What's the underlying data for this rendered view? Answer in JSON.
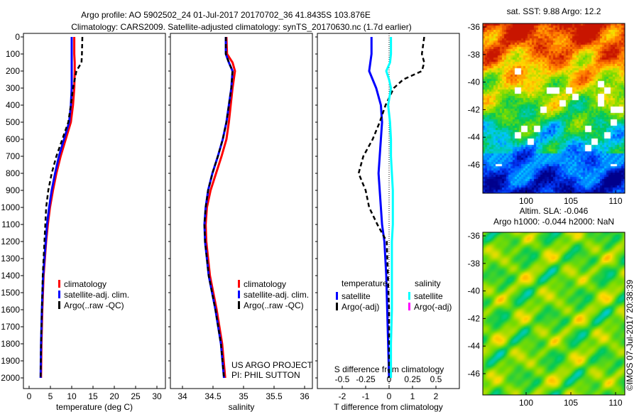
{
  "title_line1": "Argo profile: AO 5902502_24 01-Jul-2017 20170702_36 41.8435S 103.876E",
  "title_line2": "Climatology: CARS2009. Satellite-adjusted climatology: synTS_20170630.nc (1.7d earlier)",
  "colors": {
    "climatology": "#ff0000",
    "satellite": "#0000ff",
    "argo": "#000000",
    "sal_satellite": "#00ffff",
    "sal_argo": "#ff00ff"
  },
  "chart_data": [
    {
      "type": "line",
      "name": "temperature",
      "xlabel": "temperature (deg C)",
      "xlim": [
        -1.5,
        31.5
      ],
      "ylim": [
        2050,
        0
      ],
      "xticks": [
        "0",
        "5",
        "10",
        "15",
        "20",
        "25",
        "30"
      ],
      "yticks": [
        "0",
        "100",
        "200",
        "300",
        "400",
        "500",
        "600",
        "700",
        "800",
        "900",
        "1000",
        "1100",
        "1200",
        "1300",
        "1400",
        "1500",
        "1600",
        "1700",
        "1800",
        "1900",
        "2000"
      ],
      "legend": [
        "climatology",
        "satellite-adj. clim.",
        "Argo(..raw -QC)"
      ],
      "depth": [
        0,
        100,
        150,
        200,
        300,
        400,
        500,
        600,
        700,
        800,
        900,
        1000,
        1100,
        1200,
        1400,
        1600,
        1800,
        2000
      ],
      "series": [
        {
          "name": "climatology",
          "values": [
            10.6,
            10.6,
            10.7,
            10.7,
            10.6,
            10.3,
            9.8,
            8.6,
            7.4,
            6.4,
            5.6,
            4.9,
            4.4,
            4.0,
            3.4,
            3.1,
            2.9,
            2.8
          ]
        },
        {
          "name": "satellite",
          "values": [
            10.0,
            10.0,
            10.0,
            10.0,
            10.0,
            9.8,
            9.4,
            8.2,
            7.0,
            6.1,
            5.3,
            4.7,
            4.2,
            3.9,
            3.3,
            3.0,
            2.8,
            2.7
          ]
        },
        {
          "name": "argo",
          "values": [
            12.5,
            12.4,
            12.3,
            11.1,
            10.3,
            9.8,
            9.2,
            7.8,
            6.4,
            5.3,
            4.5,
            4.0,
            3.8,
            3.6,
            3.2,
            3.0,
            2.8,
            2.7
          ]
        }
      ],
      "annotation": ""
    },
    {
      "type": "line",
      "name": "salinity",
      "xlabel": "salinity",
      "xlim": [
        33.8,
        36.1
      ],
      "ylim": [
        2050,
        0
      ],
      "xticks": [
        "34",
        "34.5",
        "35",
        "35.5",
        "36"
      ],
      "legend": [
        "climatology",
        "satellite-adj. clim.",
        "Argo(..raw -QC)"
      ],
      "depth": [
        0,
        100,
        150,
        200,
        300,
        400,
        500,
        600,
        700,
        800,
        900,
        1000,
        1100,
        1200,
        1400,
        1600,
        1800,
        2000
      ],
      "series": [
        {
          "name": "climatology",
          "values": [
            34.72,
            34.73,
            34.82,
            34.86,
            34.82,
            34.79,
            34.76,
            34.72,
            34.64,
            34.55,
            34.46,
            34.4,
            34.38,
            34.39,
            34.45,
            34.56,
            34.65,
            34.7
          ]
        },
        {
          "name": "satellite",
          "values": [
            34.71,
            34.71,
            34.76,
            34.82,
            34.8,
            34.76,
            34.72,
            34.66,
            34.58,
            34.49,
            34.42,
            34.38,
            34.36,
            34.37,
            34.43,
            34.54,
            34.63,
            34.68
          ]
        },
        {
          "name": "argo",
          "values": [
            34.71,
            34.71,
            34.76,
            34.82,
            34.8,
            34.76,
            34.72,
            34.66,
            34.58,
            34.49,
            34.42,
            34.38,
            34.36,
            34.37,
            34.43,
            34.54,
            34.63,
            34.68
          ]
        }
      ],
      "annotation": [
        "US ARGO PROJECT",
        "PI: PHIL SUTTON"
      ]
    },
    {
      "type": "line",
      "name": "difference",
      "xlabel": "T difference from climatology",
      "x2label": "S difference from climatology",
      "xlim": [
        -3,
        3
      ],
      "ylim": [
        2050,
        0
      ],
      "xticks": [
        "-2",
        "-1",
        "0",
        "1",
        "2"
      ],
      "x2ticks": [
        "-0.5",
        "-0.25",
        "0",
        "0.25",
        "0.5"
      ],
      "legend_titles": [
        "temperature",
        "salinity"
      ],
      "legend": [
        "satellite",
        "Argo(-adj)",
        "satellite",
        "Argo(-adj)"
      ],
      "depth": [
        0,
        100,
        150,
        200,
        250,
        300,
        400,
        500,
        600,
        700,
        800,
        900,
        1000,
        1100,
        1200,
        1400,
        1600,
        1800,
        2000
      ],
      "series": [
        {
          "name": "T satellite",
          "values": [
            -0.75,
            -0.75,
            -0.8,
            -0.85,
            -0.7,
            -0.55,
            -0.35,
            -0.3,
            -0.35,
            -0.4,
            -0.45,
            -0.4,
            -0.35,
            -0.3,
            -0.2,
            -0.12,
            -0.08,
            -0.04,
            0
          ]
        },
        {
          "name": "T argo",
          "values": [
            1.5,
            1.4,
            1.5,
            1.4,
            0.6,
            0.2,
            -0.15,
            -0.4,
            -0.7,
            -1.1,
            -1.3,
            -1.0,
            -0.85,
            -0.5,
            -0.1,
            -0.05,
            0,
            0,
            0
          ]
        },
        {
          "name": "S satellite",
          "values": [
            0.02,
            0.02,
            0.01,
            -0.03,
            0.0,
            0.02,
            -0.01,
            0.01,
            0.02,
            0.02,
            0.03,
            0.04,
            0.04,
            0.04,
            0.03,
            0.03,
            0.03,
            0.02,
            0.02
          ]
        }
      ]
    }
  ],
  "map_sst": {
    "title": "sat. SST: 9.88 Argo: 12.2",
    "xticks": [
      "100",
      "105",
      "110"
    ],
    "yticks": [
      "-36",
      "-38",
      "-40",
      "-42",
      "-44",
      "-46"
    ]
  },
  "map_sla": {
    "title1": "Altim. SLA: -0.046",
    "title2": "Argo h1000: -0.044 h2000: NaN",
    "xticks": [
      "100",
      "105",
      "110"
    ],
    "yticks": [
      "-36",
      "-38",
      "-40",
      "-42",
      "-44",
      "-46"
    ]
  },
  "credit": "©IMOS 07-Jul-2017 20:38:39"
}
